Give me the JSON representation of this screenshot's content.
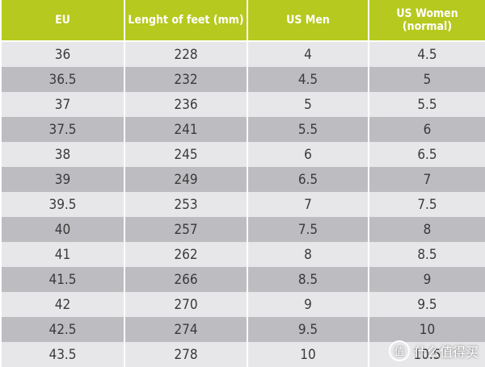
{
  "table": {
    "header": [
      "EU",
      "Lenght of feet (mm)",
      "US Men",
      [
        "US Women",
        "(normal)"
      ]
    ],
    "rows": [
      [
        "36",
        "228",
        "4",
        "4.5"
      ],
      [
        "36.5",
        "232",
        "4.5",
        "5"
      ],
      [
        "37",
        "236",
        "5",
        "5.5"
      ],
      [
        "37.5",
        "241",
        "5.5",
        "6"
      ],
      [
        "38",
        "245",
        "6",
        "6.5"
      ],
      [
        "39",
        "249",
        "6.5",
        "7"
      ],
      [
        "39.5",
        "253",
        "7",
        "7.5"
      ],
      [
        "40",
        "257",
        "7.5",
        "8"
      ],
      [
        "41",
        "262",
        "8",
        "8.5"
      ],
      [
        "41.5",
        "266",
        "8.5",
        "9"
      ],
      [
        "42",
        "270",
        "9",
        "9.5"
      ],
      [
        "42.5",
        "274",
        "9.5",
        "10"
      ],
      [
        "43.5",
        "278",
        "10",
        "10.5"
      ]
    ]
  },
  "watermark": {
    "icon": "值",
    "text": "什么值得买"
  }
}
